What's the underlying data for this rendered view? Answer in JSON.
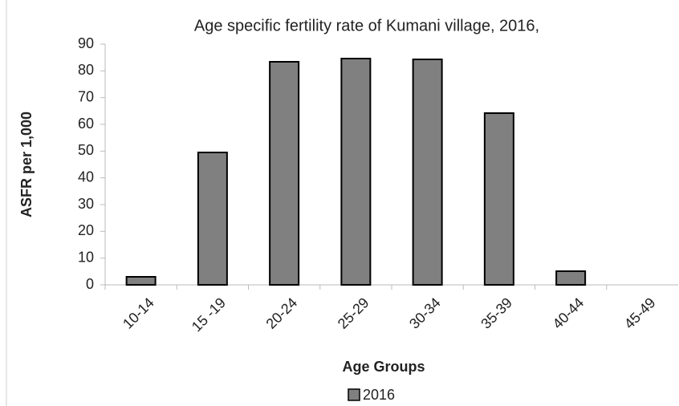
{
  "chart_data": {
    "type": "bar",
    "title": "Age specific fertility rate of Kumani village, 2016,",
    "x_label": "Age Groups",
    "y_label": "ASFR per 1,000",
    "categories": [
      "10-14",
      "15 -19",
      "20-24",
      "25-29",
      "30-34",
      "35-39",
      "40-44",
      "45-49"
    ],
    "series": [
      {
        "name": "2016",
        "color": "#808080",
        "values": [
          3,
          49.5,
          83.4,
          84.6,
          84.3,
          64.2,
          5.1,
          0
        ]
      }
    ],
    "ylim": [
      0,
      90
    ],
    "yticks": [
      0,
      10,
      20,
      30,
      40,
      50,
      60,
      70,
      80,
      90
    ],
    "grid": false,
    "legend": "bottom"
  }
}
